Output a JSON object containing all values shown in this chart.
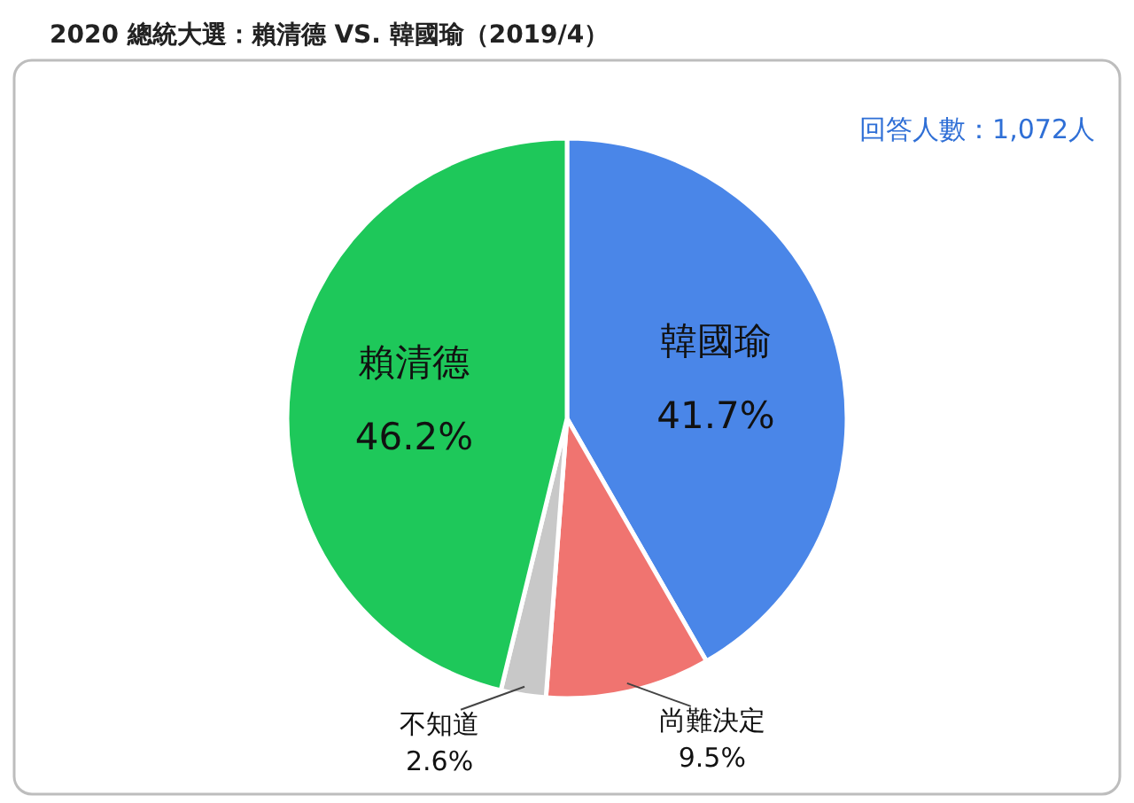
{
  "chart_data": {
    "type": "pie",
    "title": "2020 總統大選：賴清德  VS. 韓國瑜（2019/4）",
    "categories": [
      "韓國瑜",
      "尚難決定",
      "不知道",
      "賴清德"
    ],
    "values": [
      41.7,
      9.5,
      2.6,
      46.2
    ],
    "colors": [
      "#4a86e8",
      "#f07470",
      "#c8c8c8",
      "#1ec85a"
    ],
    "data_labels": true,
    "value_labels": [
      "41.7%",
      "9.5%",
      "2.6%",
      "46.2%"
    ],
    "annotations": [
      "回答人數：1,072人"
    ]
  }
}
